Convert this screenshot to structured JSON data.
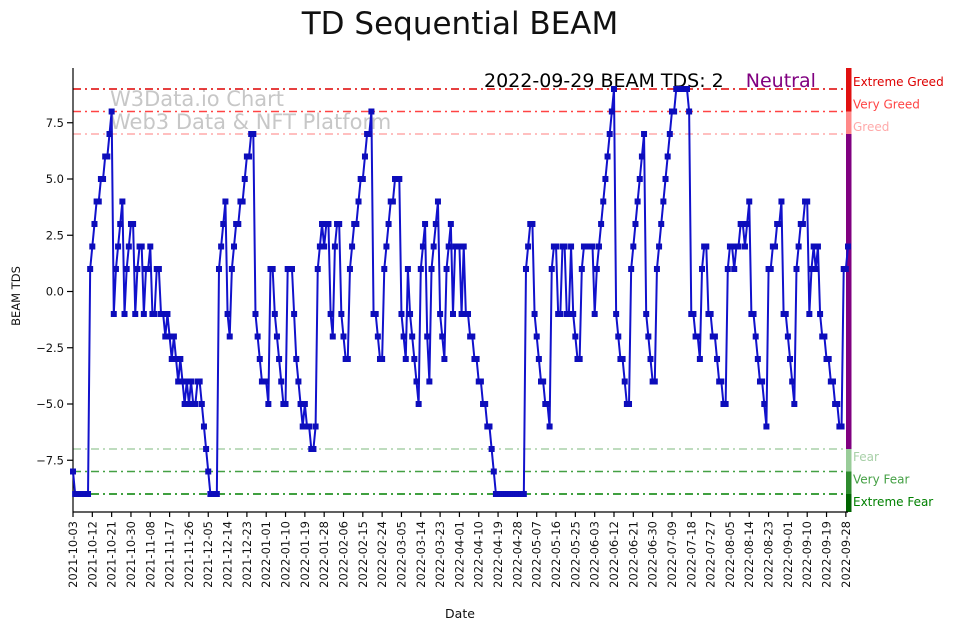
{
  "header": {
    "title": "TD Sequential BEAM"
  },
  "annotation": {
    "date_text": "2022-09-29 BEAM TDS: 2",
    "sentiment": "Neutral",
    "sentiment_color": "#800080"
  },
  "watermark": {
    "line1": "W3Data.io Chart",
    "line2": "Web3 Data & NFT Platform"
  },
  "chart_data": {
    "type": "line",
    "title": "TD Sequential BEAM",
    "xlabel": "Date",
    "ylabel": "BEAM TDS",
    "x_start": "2021-10-03",
    "x_end": "2022-09-29",
    "x_freq": "daily",
    "ylim": [
      -9.9,
      9.9
    ],
    "grid": false,
    "line_color": "#1111cc",
    "marker": "square",
    "marker_color": "#0d0dbb",
    "y_ticks": [
      {
        "label": "7.5",
        "value": 7.5
      },
      {
        "label": "5.0",
        "value": 5.0
      },
      {
        "label": "2.5",
        "value": 2.5
      },
      {
        "label": "0.0",
        "value": 0.0
      },
      {
        "label": "−2.5",
        "value": -2.5
      },
      {
        "label": "−5.0",
        "value": -5.0
      },
      {
        "label": "−7.5",
        "value": -7.5
      }
    ],
    "x_tick_step_days": 9,
    "x_tick_labels": [
      "2021-10-03",
      "2021-10-12",
      "2021-10-21",
      "2021-10-30",
      "2021-11-08",
      "2021-11-17",
      "2021-11-26",
      "2021-12-05",
      "2021-12-14",
      "2021-12-23",
      "2022-01-01",
      "2022-01-10",
      "2022-01-19",
      "2022-01-28",
      "2022-02-06",
      "2022-02-15",
      "2022-02-24",
      "2022-03-05",
      "2022-03-14",
      "2022-03-23",
      "2022-04-01",
      "2022-04-10",
      "2022-04-19",
      "2022-04-28",
      "2022-05-07",
      "2022-05-16",
      "2022-05-25",
      "2022-06-03",
      "2022-06-12",
      "2022-06-21",
      "2022-06-30",
      "2022-07-09",
      "2022-07-18",
      "2022-07-27",
      "2022-08-05",
      "2022-08-14",
      "2022-08-23",
      "2022-09-01",
      "2022-09-10",
      "2022-09-19",
      "2022-09-28"
    ],
    "thresholds": [
      {
        "label": "Extreme Greed",
        "value": 9,
        "color": "#dd0000"
      },
      {
        "label": "Very Greed",
        "value": 8,
        "color": "#ff4444"
      },
      {
        "label": "Greed",
        "value": 7,
        "color": "#ffaaaa"
      },
      {
        "label": "Fear",
        "value": -7,
        "color": "#a8d0a8"
      },
      {
        "label": "Very Fear",
        "value": -8,
        "color": "#44a044"
      },
      {
        "label": "Extreme Fear",
        "value": -9,
        "color": "#008000"
      }
    ],
    "zone_bar": [
      {
        "from": null,
        "to": 8,
        "color": "#e01010"
      },
      {
        "from": 8,
        "to": 7,
        "color": "#ff8888"
      },
      {
        "from": 7,
        "to": -7,
        "color": "#800080"
      },
      {
        "from": -7,
        "to": -8,
        "color": "#99cc99"
      },
      {
        "from": -8,
        "to": -9,
        "color": "#2e8b2e"
      },
      {
        "from": -9,
        "to": null,
        "color": "#006400"
      }
    ],
    "values": [
      -8,
      -9,
      -9,
      -9,
      -9,
      -9,
      -9,
      -9,
      1,
      2,
      3,
      4,
      4,
      5,
      5,
      6,
      6,
      7,
      8,
      -1,
      1,
      2,
      3,
      4,
      -1,
      1,
      2,
      3,
      3,
      -1,
      1,
      2,
      2,
      -1,
      1,
      1,
      2,
      -1,
      -1,
      1,
      1,
      -1,
      -1,
      -2,
      -1,
      -2,
      -3,
      -2,
      -3,
      -4,
      -3,
      -4,
      -5,
      -4,
      -5,
      -4,
      -5,
      -5,
      -4,
      -4,
      -5,
      -6,
      -7,
      -8,
      -9,
      -9,
      -9,
      -9,
      1,
      2,
      3,
      4,
      -1,
      -2,
      1,
      2,
      3,
      3,
      4,
      4,
      5,
      6,
      6,
      7,
      7,
      -1,
      -2,
      -3,
      -4,
      -4,
      -4,
      -5,
      1,
      1,
      -1,
      -2,
      -3,
      -4,
      -5,
      -5,
      1,
      1,
      1,
      -1,
      -3,
      -4,
      -5,
      -6,
      -5,
      -6,
      -6,
      -7,
      -7,
      -6,
      1,
      2,
      3,
      2,
      3,
      3,
      -1,
      -2,
      2,
      3,
      3,
      -1,
      -2,
      -3,
      -3,
      1,
      2,
      3,
      3,
      4,
      5,
      5,
      6,
      7,
      7,
      8,
      -1,
      -1,
      -2,
      -3,
      -3,
      1,
      2,
      3,
      4,
      4,
      5,
      5,
      5,
      -1,
      -2,
      -3,
      1,
      -1,
      -2,
      -3,
      -4,
      -5,
      1,
      2,
      3,
      -2,
      -4,
      1,
      2,
      3,
      4,
      -1,
      -2,
      -3,
      1,
      2,
      3,
      -1,
      2,
      2,
      2,
      -1,
      2,
      -1,
      -1,
      -2,
      -2,
      -3,
      -3,
      -4,
      -4,
      -5,
      -5,
      -6,
      -6,
      -7,
      -8,
      -9,
      -9,
      -9,
      -9,
      -9,
      -9,
      -9,
      -9,
      -9,
      -9,
      -9,
      -9,
      -9,
      -9,
      1,
      2,
      3,
      3,
      -1,
      -2,
      -3,
      -4,
      -4,
      -5,
      -5,
      -6,
      1,
      2,
      2,
      -1,
      -1,
      2,
      2,
      -1,
      -1,
      2,
      -1,
      -2,
      -3,
      -3,
      1,
      2,
      2,
      2,
      2,
      2,
      -1,
      1,
      2,
      3,
      4,
      5,
      6,
      7,
      8,
      9,
      -1,
      -2,
      -3,
      -3,
      -4,
      -5,
      -5,
      1,
      2,
      3,
      4,
      5,
      6,
      7,
      -1,
      -2,
      -3,
      -4,
      -4,
      1,
      2,
      3,
      4,
      5,
      6,
      7,
      8,
      8,
      9,
      9,
      9,
      9,
      9,
      9,
      8,
      -1,
      -1,
      -2,
      -2,
      -3,
      1,
      2,
      2,
      -1,
      -1,
      -2,
      -2,
      -3,
      -4,
      -4,
      -5,
      -5,
      1,
      2,
      2,
      1,
      2,
      2,
      3,
      3,
      2,
      3,
      4,
      -1,
      -1,
      -2,
      -3,
      -4,
      -4,
      -5,
      -6,
      1,
      1,
      2,
      2,
      3,
      3,
      4,
      -1,
      -1,
      -2,
      -3,
      -4,
      -5,
      1,
      2,
      3,
      3,
      4,
      4,
      -1,
      1,
      2,
      1,
      2,
      -1,
      -2,
      -2,
      -3,
      -3,
      -4,
      -4,
      -5,
      -5,
      -6,
      -6,
      1,
      1,
      2
    ],
    "last_point": {
      "date": "2022-09-29",
      "value": 2
    }
  }
}
